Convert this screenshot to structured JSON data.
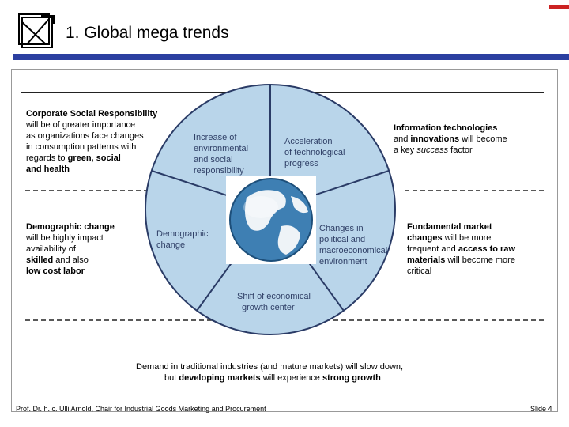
{
  "slide": {
    "title": "1. Global mega trends",
    "footer_left": "Prof. Dr. h. c. Ulli Arnold, Chair for Industrial Goods Marketing and Procurement",
    "slide_label": "Slide 4"
  },
  "colors": {
    "title_bar": "#2b3fa0",
    "accent_red": "#cc2222",
    "circle_fill": "#b9d5ea",
    "circle_stroke": "#2a3b66",
    "segment_text": "#2f3f66"
  },
  "segments": {
    "environment": "Increase of environmental and social responsibility",
    "technology": "Acceleration of technological progress",
    "demographic": "Demographic change",
    "political": "Changes in political and macroeconomical environment",
    "growth": "Shift of economical growth center"
  },
  "center_image": "globe-icon",
  "left_top": {
    "heading": "Corporate Social Responsibility",
    "line1": "will be of greater  importance",
    "line2": "as organizations face changes",
    "line3": "in consumption patterns with",
    "line4_pre": "regards to ",
    "line4_bold": "green, social",
    "line5_bold": "and health"
  },
  "left_mid": {
    "heading": "Demographic change",
    "line1": "will be highly impact",
    "line2": "availability of",
    "line3_bold": "skilled",
    "line3_post": " and also",
    "line4_bold": "low cost labor"
  },
  "right_top": {
    "heading": "Information technologies",
    "line2_pre": "and ",
    "line2_bold": "innovations",
    "line2_post": " will become",
    "line3_pre": "a key ",
    "line3_italic": "success",
    "line3_post": " factor"
  },
  "right_mid": {
    "line1_bold": "Fundamental market",
    "line2_bold": "changes",
    "line2_post": " will be more",
    "line3_pre": "frequent and ",
    "line3_bold": "access to raw",
    "line4_bold": "materials",
    "line4_post": " will become more",
    "line5": "critical"
  },
  "bottom": {
    "line1": "Demand in traditional industries (and mature markets) will slow down,",
    "line2_pre": "but ",
    "line2_bold1": "developing markets",
    "line2_mid": " will experience ",
    "line2_bold2": "strong growth"
  }
}
